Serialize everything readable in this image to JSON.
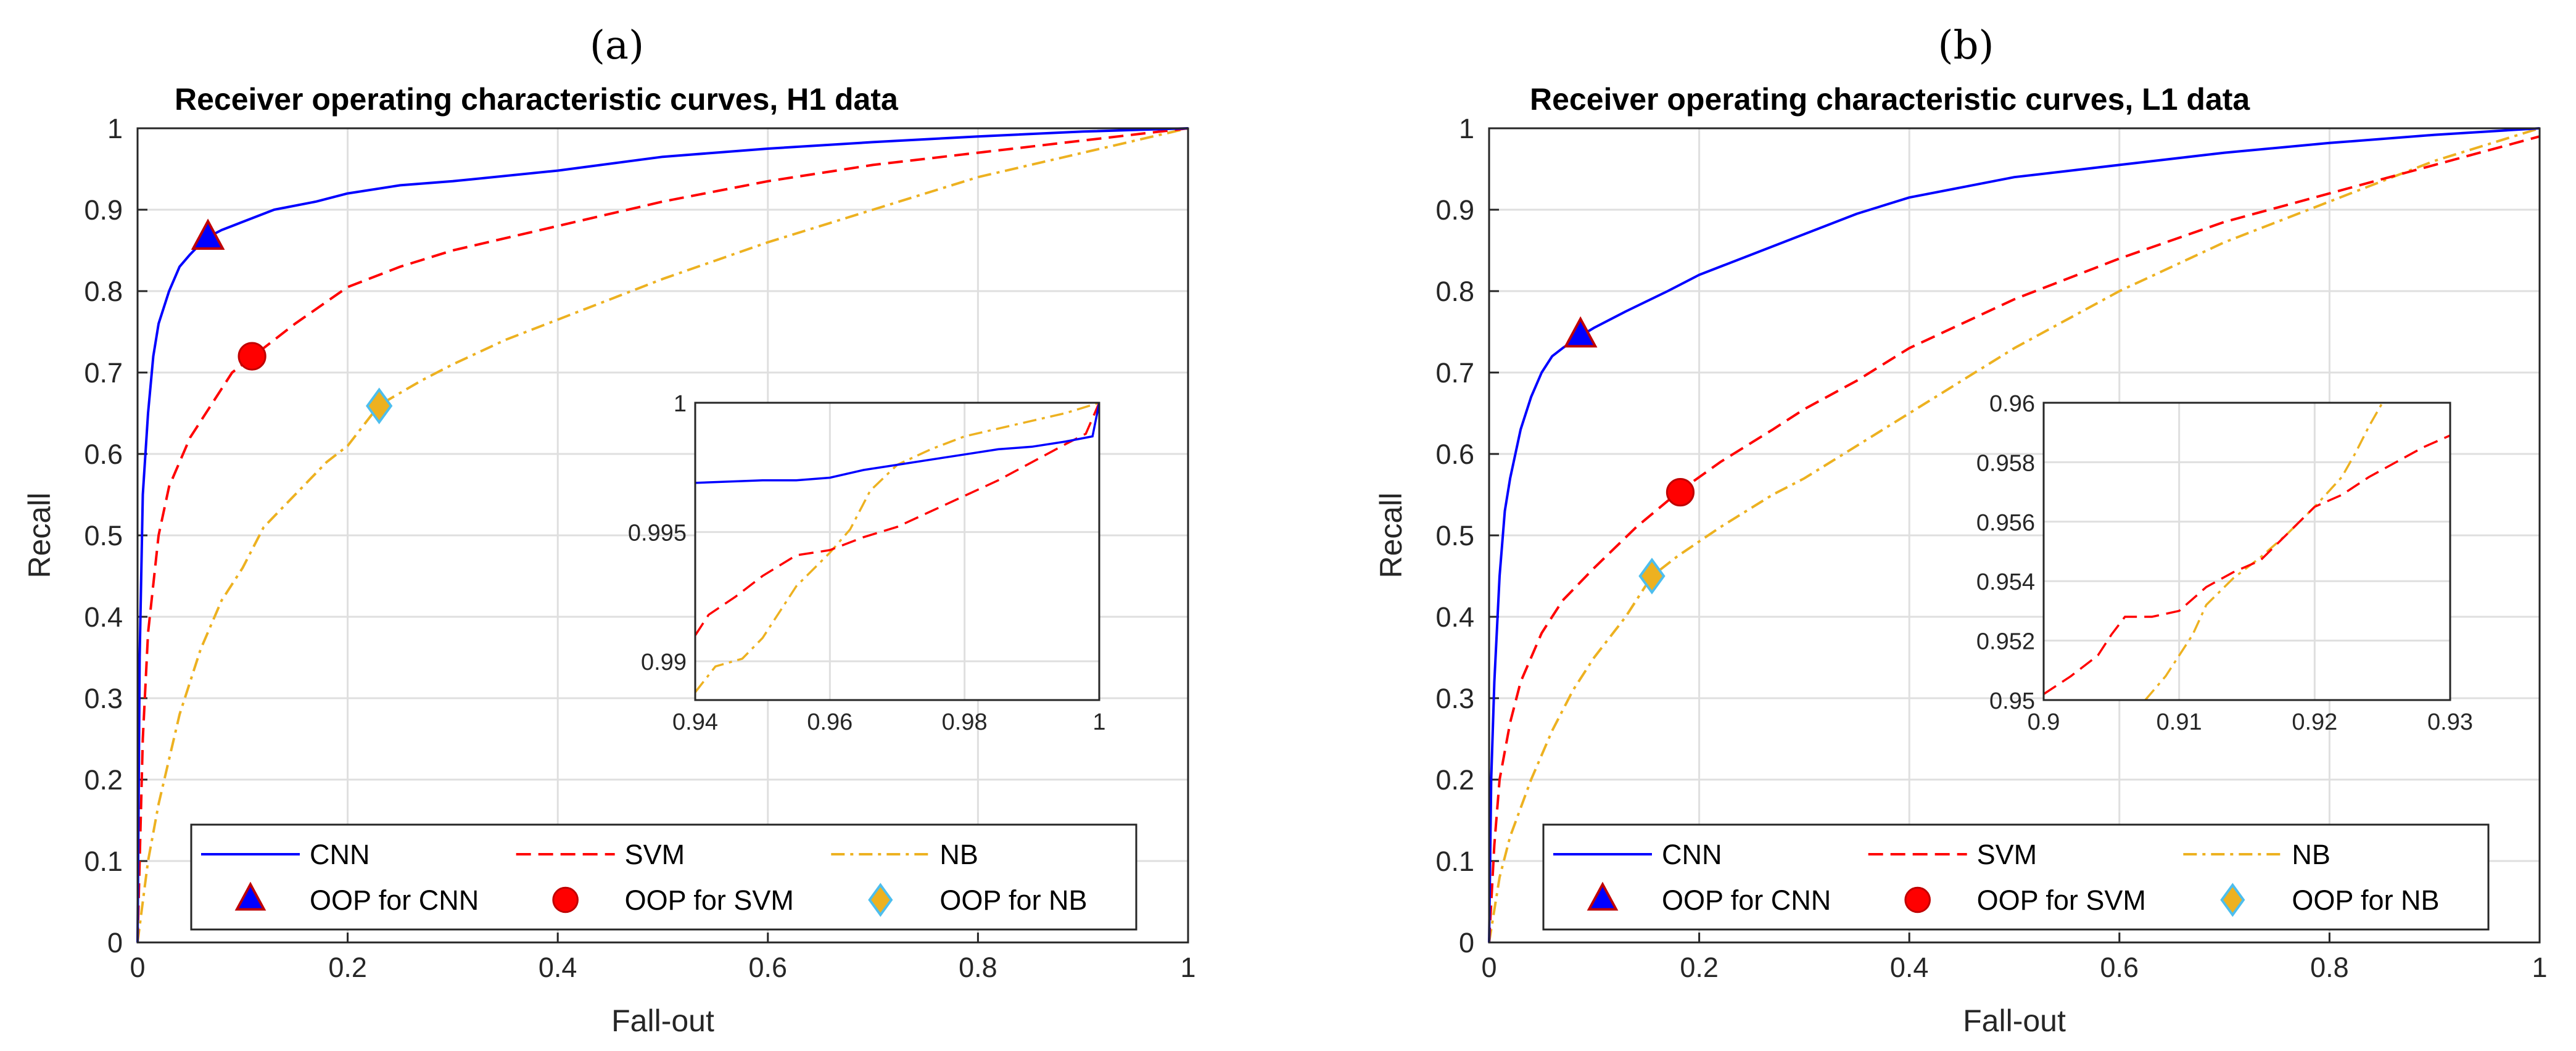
{
  "chart_data": [
    {
      "panel_label": "(a)",
      "type": "line",
      "title": "Receiver operating characteristic curves, H1 data",
      "xlabel": "Fall-out",
      "ylabel": "Recall",
      "xlim": [
        0,
        1
      ],
      "ylim": [
        0,
        1
      ],
      "x_ticks": [
        "0",
        "0.2",
        "0.4",
        "0.6",
        "0.8",
        "1"
      ],
      "y_ticks": [
        "0",
        "0.1",
        "0.2",
        "0.3",
        "0.4",
        "0.5",
        "0.6",
        "0.7",
        "0.8",
        "0.9",
        "1"
      ],
      "grid": true,
      "legend_placement": "bottom",
      "series": [
        {
          "name": "CNN",
          "color": "#0000ff",
          "dash": "solid",
          "x": [
            0,
            0.002,
            0.005,
            0.01,
            0.015,
            0.02,
            0.03,
            0.04,
            0.05,
            0.065,
            0.08,
            0.1,
            0.13,
            0.17,
            0.2,
            0.25,
            0.3,
            0.4,
            0.5,
            0.6,
            0.7,
            0.8,
            0.9,
            1
          ],
          "y": [
            0,
            0.35,
            0.55,
            0.65,
            0.72,
            0.76,
            0.8,
            0.83,
            0.845,
            0.865,
            0.875,
            0.885,
            0.9,
            0.91,
            0.92,
            0.93,
            0.935,
            0.948,
            0.965,
            0.975,
            0.983,
            0.99,
            0.996,
            1
          ]
        },
        {
          "name": "SVM",
          "color": "#ff0000",
          "dash": "dashed",
          "x": [
            0,
            0.005,
            0.01,
            0.02,
            0.03,
            0.05,
            0.07,
            0.09,
            0.11,
            0.15,
            0.2,
            0.25,
            0.3,
            0.4,
            0.5,
            0.6,
            0.7,
            0.8,
            0.9,
            1
          ],
          "y": [
            0,
            0.25,
            0.38,
            0.5,
            0.56,
            0.62,
            0.66,
            0.7,
            0.72,
            0.76,
            0.805,
            0.83,
            0.85,
            0.88,
            0.91,
            0.935,
            0.955,
            0.97,
            0.985,
            1
          ]
        },
        {
          "name": "NB",
          "color": "#edb120",
          "dash": "dashdot",
          "x": [
            0,
            0.005,
            0.01,
            0.02,
            0.04,
            0.06,
            0.08,
            0.1,
            0.12,
            0.15,
            0.18,
            0.2,
            0.23,
            0.27,
            0.3,
            0.35,
            0.4,
            0.45,
            0.5,
            0.6,
            0.7,
            0.8,
            0.9,
            1
          ],
          "y": [
            0,
            0.05,
            0.1,
            0.17,
            0.28,
            0.36,
            0.42,
            0.46,
            0.51,
            0.55,
            0.59,
            0.61,
            0.66,
            0.69,
            0.71,
            0.74,
            0.765,
            0.79,
            0.815,
            0.86,
            0.9,
            0.94,
            0.97,
            1
          ]
        }
      ],
      "markers": [
        {
          "name": "OOP for CNN",
          "shape": "triangle",
          "fill": "#0000ff",
          "stroke": "#c00000",
          "x": 0.067,
          "y": 0.865
        },
        {
          "name": "OOP for SVM",
          "shape": "circle",
          "fill": "#ff0000",
          "stroke": "#c00000",
          "x": 0.109,
          "y": 0.72
        },
        {
          "name": "OOP for NB",
          "shape": "diamond",
          "fill": "#edb120",
          "stroke": "#4dbeee",
          "x": 0.23,
          "y": 0.659
        }
      ],
      "inset": {
        "xlim": [
          0.94,
          1
        ],
        "ylim": [
          0.9885,
          1
        ],
        "x_ticks": [
          {
            "v": 0.94,
            "label": "0.94"
          },
          {
            "v": 0.96,
            "label": "0.96"
          },
          {
            "v": 0.98,
            "label": "0.98"
          },
          {
            "v": 1,
            "label": "1"
          }
        ],
        "y_ticks": [
          {
            "v": 0.99,
            "label": "0.99"
          },
          {
            "v": 0.995,
            "label": "0.995"
          },
          {
            "v": 1,
            "label": "1"
          }
        ],
        "series": [
          {
            "name": "CNN",
            "x": [
              0.94,
              0.95,
              0.955,
              0.96,
              0.965,
              0.97,
              0.975,
              0.98,
              0.985,
              0.99,
              0.995,
              0.999,
              1
            ],
            "y": [
              0.9969,
              0.997,
              0.997,
              0.9971,
              0.9974,
              0.9976,
              0.9978,
              0.998,
              0.9982,
              0.9983,
              0.9985,
              0.9987,
              1
            ]
          },
          {
            "name": "SVM",
            "x": [
              0.94,
              0.942,
              0.946,
              0.95,
              0.955,
              0.96,
              0.965,
              0.97,
              0.975,
              0.98,
              0.985,
              0.99,
              0.995,
              0.998,
              1
            ],
            "y": [
              0.991,
              0.9918,
              0.9925,
              0.9933,
              0.9941,
              0.9943,
              0.9948,
              0.9952,
              0.9958,
              0.9964,
              0.997,
              0.9977,
              0.9984,
              0.9988,
              1
            ]
          },
          {
            "name": "NB",
            "x": [
              0.94,
              0.943,
              0.947,
              0.95,
              0.955,
              0.96,
              0.963,
              0.966,
              0.97,
              0.975,
              0.98,
              0.99,
              0.995,
              1
            ],
            "y": [
              0.9888,
              0.9898,
              0.9901,
              0.9909,
              0.9929,
              0.9942,
              0.9951,
              0.9966,
              0.9976,
              0.9982,
              0.9987,
              0.9993,
              0.9996,
              1
            ]
          }
        ]
      }
    },
    {
      "panel_label": "(b)",
      "type": "line",
      "title": "Receiver operating characteristic curves, L1 data",
      "xlabel": "Fall-out",
      "ylabel": "Recall",
      "xlim": [
        0,
        1
      ],
      "ylim": [
        0,
        1
      ],
      "x_ticks": [
        "0",
        "0.2",
        "0.4",
        "0.6",
        "0.8",
        "1"
      ],
      "y_ticks": [
        "0",
        "0.1",
        "0.2",
        "0.3",
        "0.4",
        "0.5",
        "0.6",
        "0.7",
        "0.8",
        "0.9",
        "1"
      ],
      "grid": true,
      "legend_placement": "bottom",
      "series": [
        {
          "name": "CNN",
          "color": "#0000ff",
          "dash": "solid",
          "x": [
            0,
            0.002,
            0.005,
            0.01,
            0.015,
            0.02,
            0.03,
            0.04,
            0.05,
            0.06,
            0.07,
            0.087,
            0.1,
            0.13,
            0.17,
            0.2,
            0.25,
            0.3,
            0.35,
            0.4,
            0.5,
            0.6,
            0.7,
            0.8,
            0.9,
            1
          ],
          "y": [
            0,
            0.2,
            0.32,
            0.45,
            0.53,
            0.57,
            0.63,
            0.67,
            0.7,
            0.72,
            0.73,
            0.745,
            0.755,
            0.775,
            0.8,
            0.82,
            0.845,
            0.87,
            0.895,
            0.915,
            0.94,
            0.955,
            0.97,
            0.982,
            0.992,
            1
          ]
        },
        {
          "name": "SVM",
          "color": "#ff0000",
          "dash": "dashed",
          "x": [
            0,
            0.005,
            0.01,
            0.02,
            0.03,
            0.05,
            0.07,
            0.1,
            0.14,
            0.18,
            0.22,
            0.27,
            0.3,
            0.35,
            0.4,
            0.5,
            0.6,
            0.7,
            0.8,
            0.9,
            1
          ],
          "y": [
            0,
            0.12,
            0.2,
            0.27,
            0.32,
            0.38,
            0.42,
            0.46,
            0.51,
            0.553,
            0.59,
            0.63,
            0.655,
            0.69,
            0.73,
            0.79,
            0.84,
            0.885,
            0.92,
            0.955,
            0.99
          ]
        },
        {
          "name": "NB",
          "color": "#edb120",
          "dash": "dashdot",
          "x": [
            0,
            0.005,
            0.01,
            0.02,
            0.04,
            0.06,
            0.08,
            0.1,
            0.13,
            0.155,
            0.18,
            0.22,
            0.27,
            0.3,
            0.35,
            0.4,
            0.5,
            0.6,
            0.7,
            0.8,
            0.9,
            1
          ],
          "y": [
            0,
            0.04,
            0.08,
            0.13,
            0.2,
            0.26,
            0.31,
            0.35,
            0.4,
            0.45,
            0.475,
            0.51,
            0.55,
            0.57,
            0.61,
            0.65,
            0.73,
            0.8,
            0.86,
            0.91,
            0.96,
            1
          ]
        }
      ],
      "markers": [
        {
          "name": "OOP for CNN",
          "shape": "triangle",
          "fill": "#0000ff",
          "stroke": "#c00000",
          "x": 0.087,
          "y": 0.745
        },
        {
          "name": "OOP for SVM",
          "shape": "circle",
          "fill": "#ff0000",
          "stroke": "#c00000",
          "x": 0.182,
          "y": 0.553
        },
        {
          "name": "OOP for NB",
          "shape": "diamond",
          "fill": "#edb120",
          "stroke": "#4dbeee",
          "x": 0.155,
          "y": 0.45
        }
      ],
      "inset": {
        "xlim": [
          0.9,
          0.93
        ],
        "ylim": [
          0.95,
          0.96
        ],
        "x_ticks": [
          {
            "v": 0.9,
            "label": "0.9"
          },
          {
            "v": 0.91,
            "label": "0.91"
          },
          {
            "v": 0.92,
            "label": "0.92"
          },
          {
            "v": 0.93,
            "label": "0.93"
          }
        ],
        "y_ticks": [
          {
            "v": 0.95,
            "label": "0.95"
          },
          {
            "v": 0.952,
            "label": "0.952"
          },
          {
            "v": 0.954,
            "label": "0.954"
          },
          {
            "v": 0.956,
            "label": "0.956"
          },
          {
            "v": 0.958,
            "label": "0.958"
          },
          {
            "v": 0.96,
            "label": "0.96"
          }
        ],
        "series": [
          {
            "name": "CNN",
            "x": [],
            "y": []
          },
          {
            "name": "SVM",
            "x": [
              0.9,
              0.902,
              0.904,
              0.905,
              0.906,
              0.908,
              0.91,
              0.912,
              0.914,
              0.916,
              0.918,
              0.92,
              0.922,
              0.924,
              0.926,
              0.928,
              0.93
            ],
            "y": [
              0.9502,
              0.9508,
              0.9515,
              0.9522,
              0.9528,
              0.9528,
              0.953,
              0.9538,
              0.9543,
              0.9547,
              0.9556,
              0.9565,
              0.9569,
              0.9575,
              0.958,
              0.9585,
              0.9589
            ]
          },
          {
            "name": "NB",
            "x": [
              0.9075,
              0.909,
              0.91,
              0.911,
              0.912,
              0.914,
              0.916,
              0.918,
              0.92,
              0.922,
              0.923,
              0.924,
              0.925
            ],
            "y": [
              0.95,
              0.9508,
              0.9515,
              0.9522,
              0.9532,
              0.9541,
              0.9548,
              0.9556,
              0.9565,
              0.9575,
              0.9583,
              0.9592,
              0.96
            ]
          }
        ]
      }
    }
  ]
}
